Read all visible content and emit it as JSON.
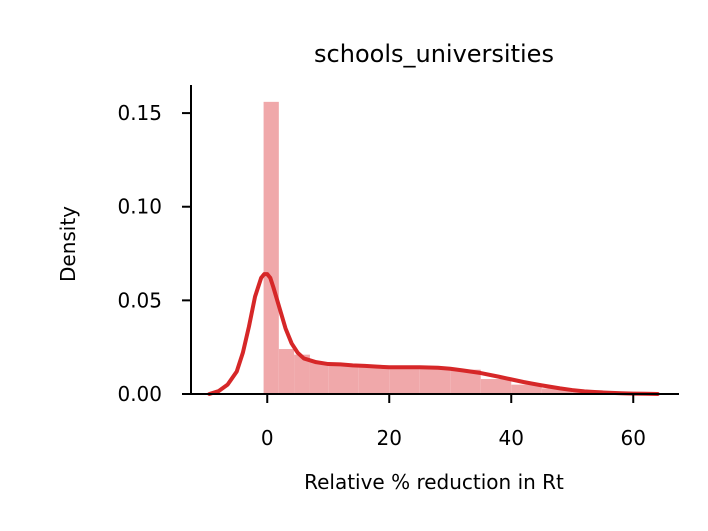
{
  "chart_data": {
    "type": "bar",
    "title": "schools_universities",
    "xlabel": "Relative % reduction in Rt",
    "ylabel": "Density",
    "xlim": [
      -12.5,
      67.5
    ],
    "ylim": [
      0,
      0.165
    ],
    "x_ticks": [
      0,
      20,
      40,
      60
    ],
    "x_tick_labels": [
      "0",
      "20",
      "40",
      "60"
    ],
    "y_ticks": [
      0.0,
      0.05,
      0.1,
      0.15
    ],
    "y_tick_labels": [
      "0.00",
      "0.05",
      "0.10",
      "0.15"
    ],
    "grid": false,
    "legend": "none",
    "histogram": {
      "color": "#f0a8aa",
      "bin_edges": [
        -0.6,
        1.9,
        4.4,
        7.0,
        10.0,
        15.0,
        20.0,
        25.0,
        30.0,
        35.0,
        40.0,
        45.0,
        50.0,
        55.0,
        60.0,
        64.0
      ],
      "values": [
        0.156,
        0.024,
        0.021,
        0.017,
        0.016,
        0.015,
        0.014,
        0.014,
        0.013,
        0.008,
        0.005,
        0.003,
        0.002,
        0.001,
        0.0005
      ]
    },
    "kde": {
      "color": "#d62728",
      "x": [
        -9.5,
        -8,
        -6.5,
        -5,
        -4,
        -3,
        -2,
        -1,
        -0.5,
        0,
        0.5,
        1,
        2,
        3,
        4,
        5,
        6,
        7,
        8,
        10,
        12,
        14,
        16,
        18,
        20,
        22,
        25,
        28,
        30,
        32,
        35,
        38,
        40,
        42,
        45,
        48,
        50,
        52,
        55,
        58,
        60,
        62,
        64
      ],
      "y": [
        0.0,
        0.0015,
        0.005,
        0.012,
        0.022,
        0.036,
        0.052,
        0.062,
        0.064,
        0.064,
        0.062,
        0.057,
        0.046,
        0.035,
        0.027,
        0.022,
        0.019,
        0.018,
        0.017,
        0.016,
        0.0158,
        0.0153,
        0.015,
        0.0146,
        0.0143,
        0.0143,
        0.0143,
        0.014,
        0.0135,
        0.0126,
        0.0112,
        0.0092,
        0.0078,
        0.0064,
        0.0046,
        0.003,
        0.0021,
        0.0014,
        0.0008,
        0.0004,
        0.0002,
        0.0001,
        0.0
      ]
    }
  }
}
